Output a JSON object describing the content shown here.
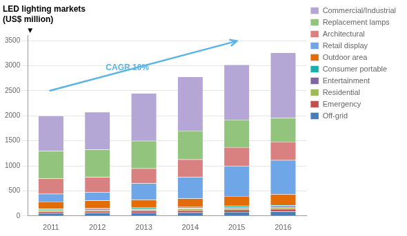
{
  "chart_data": {
    "type": "bar",
    "stacked": true,
    "title": "LED lighting markets",
    "subtitle": "(US$ million)",
    "categories": [
      "2011",
      "2012",
      "2013",
      "2014",
      "2015",
      "2016"
    ],
    "series": [
      {
        "name": "Off-grid",
        "color": "#4a7cb5",
        "values": [
          55,
          60,
          65,
          70,
          80,
          90
        ]
      },
      {
        "name": "Emergency",
        "color": "#c1504d",
        "values": [
          35,
          38,
          40,
          42,
          45,
          48
        ]
      },
      {
        "name": "Residential",
        "color": "#9bbb59",
        "values": [
          20,
          22,
          25,
          28,
          30,
          32
        ]
      },
      {
        "name": "Entertainment",
        "color": "#7f66a0",
        "values": [
          15,
          17,
          18,
          20,
          22,
          25
        ]
      },
      {
        "name": "Consumer portable",
        "color": "#1aafad",
        "values": [
          15,
          16,
          17,
          18,
          20,
          22
        ]
      },
      {
        "name": "Outdoor area",
        "color": "#e36c09",
        "values": [
          145,
          155,
          160,
          170,
          200,
          215
        ]
      },
      {
        "name": "Retail display",
        "color": "#6ea6e8",
        "values": [
          155,
          167,
          325,
          430,
          600,
          680
        ]
      },
      {
        "name": "Architectural",
        "color": "#d98080",
        "values": [
          310,
          300,
          300,
          350,
          375,
          370
        ]
      },
      {
        "name": "Replacement lamps",
        "color": "#93c47d",
        "values": [
          550,
          550,
          550,
          572,
          548,
          478
        ]
      },
      {
        "name": "Commercial/Industrial",
        "color": "#b4a7d6",
        "values": [
          700,
          750,
          950,
          1080,
          1100,
          1300
        ]
      }
    ],
    "ylim": [
      0,
      3600
    ],
    "yticks": [
      0,
      500,
      1000,
      1500,
      2000,
      2500,
      3000,
      3500
    ],
    "grid": true,
    "legend": "right",
    "annotations": [
      {
        "text": "▼"
      },
      {
        "text": "CAGR 10%",
        "color": "#5ab4e5"
      }
    ]
  }
}
